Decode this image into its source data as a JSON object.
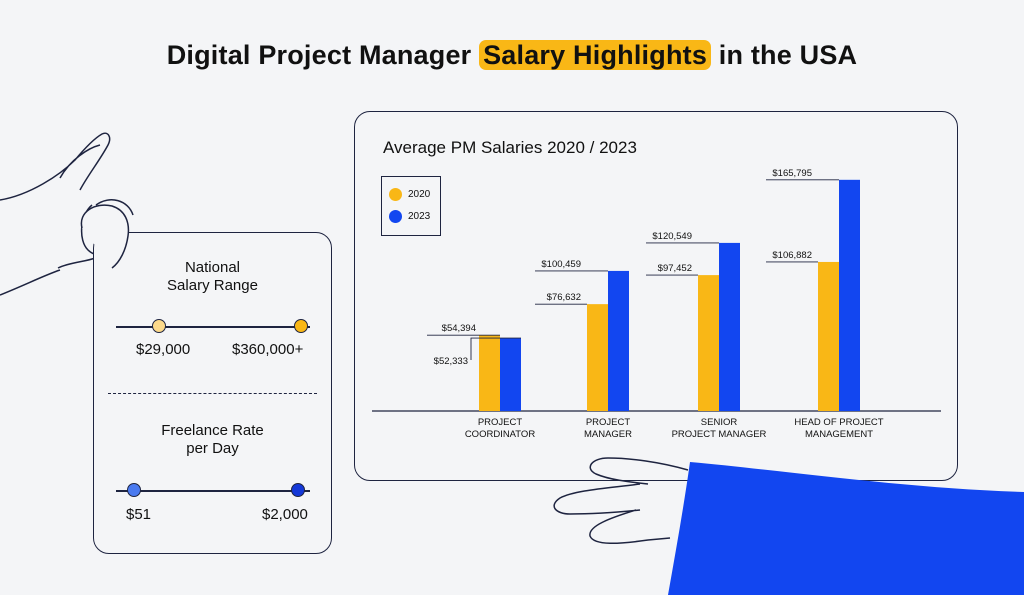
{
  "page": {
    "title_pre": "Digital Project Manager ",
    "title_highlight": "Salary Highlights",
    "title_post": " in the USA"
  },
  "colors": {
    "bar_2020": "#f9b716",
    "bar_2023": "#1246f0",
    "ink": "#1e2440",
    "sleeve": "#1246f0",
    "range_low_dot": "#fcd98a",
    "range_high_dot": "#f9b716",
    "rate_low_dot": "#4a7af0",
    "rate_high_dot": "#1438d8"
  },
  "salary_range": {
    "heading_line1": "National",
    "heading_line2": "Salary Range",
    "min": "$29,000",
    "max": "$360,000+"
  },
  "freelance_rate": {
    "heading_line1": "Freelance Rate",
    "heading_line2": "per Day",
    "min": "$51",
    "max": "$2,000"
  },
  "chart_data": {
    "type": "bar",
    "title": "Average PM Salaries 2020 / 2023",
    "categories": [
      [
        "PROJECT",
        "COORDINATOR"
      ],
      [
        "PROJECT",
        "MANAGER"
      ],
      [
        "SENIOR",
        "PROJECT MANAGER"
      ],
      [
        "HEAD OF PROJECT",
        "MANAGEMENT"
      ]
    ],
    "series": [
      {
        "name": "2020",
        "values": [
          54394,
          76632,
          97452,
          106882
        ],
        "labels": [
          "$54,394",
          "$76,632",
          "$97,452",
          "$106,882"
        ]
      },
      {
        "name": "2023",
        "values": [
          52333,
          100459,
          120549,
          165795
        ],
        "labels": [
          "$52,333",
          "$100,459",
          "$120,549",
          "$165,795"
        ]
      }
    ],
    "ylim": [
      0,
      180000
    ],
    "grid": false,
    "legend_position": "top-left"
  }
}
